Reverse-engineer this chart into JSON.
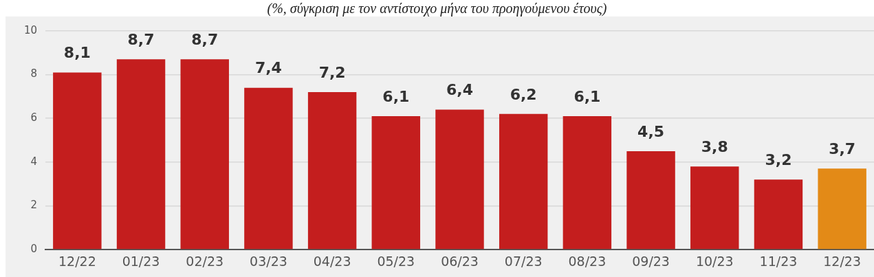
{
  "chart_data": {
    "type": "bar",
    "subtitle": "(%, σύγκριση με τον αντίστοιχο μήνα του προηγούμενου έτους)",
    "categories": [
      "12/22",
      "01/23",
      "02/23",
      "03/23",
      "04/23",
      "05/23",
      "06/23",
      "07/23",
      "08/23",
      "09/23",
      "10/23",
      "11/23",
      "12/23"
    ],
    "values": [
      8.1,
      8.7,
      8.7,
      7.4,
      7.2,
      6.1,
      6.4,
      6.2,
      6.1,
      4.5,
      3.8,
      3.2,
      3.7
    ],
    "colors": [
      "#c41e1e",
      "#c41e1e",
      "#c41e1e",
      "#c41e1e",
      "#c41e1e",
      "#c41e1e",
      "#c41e1e",
      "#c41e1e",
      "#c41e1e",
      "#c41e1e",
      "#c41e1e",
      "#c41e1e",
      "#e38a17"
    ],
    "value_labels": [
      "8,1",
      "8,7",
      "8,7",
      "7,4",
      "7,2",
      "6,1",
      "6,4",
      "6,2",
      "6,1",
      "4,5",
      "3,8",
      "3,2",
      "3,7"
    ],
    "ylim": [
      0,
      10
    ],
    "yticks": [
      0,
      2,
      4,
      6,
      8,
      10
    ],
    "grid": "y"
  }
}
